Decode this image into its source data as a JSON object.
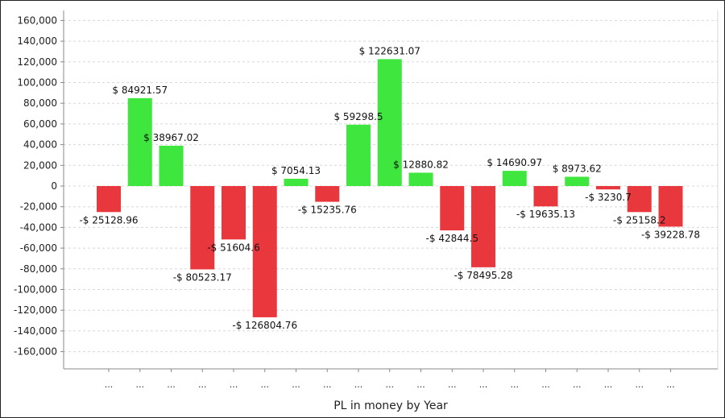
{
  "chart_data": {
    "type": "bar",
    "xlabel": "PL in money by Year",
    "ylabel": "",
    "ylim": [
      -170000,
      170000
    ],
    "yticks": [
      160000,
      140000,
      120000,
      100000,
      80000,
      60000,
      40000,
      20000,
      0,
      -20000,
      -40000,
      -60000,
      -80000,
      -100000,
      -120000,
      -140000,
      -160000
    ],
    "ytick_labels": [
      "160,000",
      "140,000",
      "120,000",
      "100,000",
      "80,000",
      "60,000",
      "40,000",
      "20,000",
      "0",
      "-20,000",
      "-40,000",
      "-60,000",
      "-80,000",
      "-100,000",
      "-120,000",
      "-140,000",
      "-160,000"
    ],
    "grid": true,
    "colors": {
      "positive": "#3ee63e",
      "negative": "#e8383d",
      "grid": "#d8d8d8",
      "axis": "#888888"
    },
    "categories": [
      "...",
      "...",
      "...",
      "...",
      "...",
      "...",
      "...",
      "...",
      "...",
      "...",
      "...",
      "...",
      "...",
      "...",
      "...",
      "...",
      "...",
      "...",
      "..."
    ],
    "values": [
      -25128.96,
      84921.57,
      38967.02,
      -80523.17,
      -51604.6,
      -126804.76,
      7054.13,
      -15235.76,
      59298.5,
      122631.07,
      12880.82,
      -42844.5,
      -78495.28,
      14690.97,
      -19635.13,
      8973.62,
      -3230.7,
      -25158.2,
      -39228.78
    ],
    "data_labels": [
      "-$ 25128.96",
      "$ 84921.57",
      "$ 38967.02",
      "-$ 80523.17",
      "-$ 51604.6",
      "-$ 126804.76",
      "$ 7054.13",
      "-$ 15235.76",
      "$ 59298.5",
      "$ 122631.07",
      "$ 12880.82",
      "-$ 42844.5",
      "-$ 78495.28",
      "$ 14690.97",
      "-$ 19635.13",
      "$ 8973.62",
      "-$ 3230.7",
      "-$ 25158.2",
      "-$ 39228.78"
    ]
  }
}
